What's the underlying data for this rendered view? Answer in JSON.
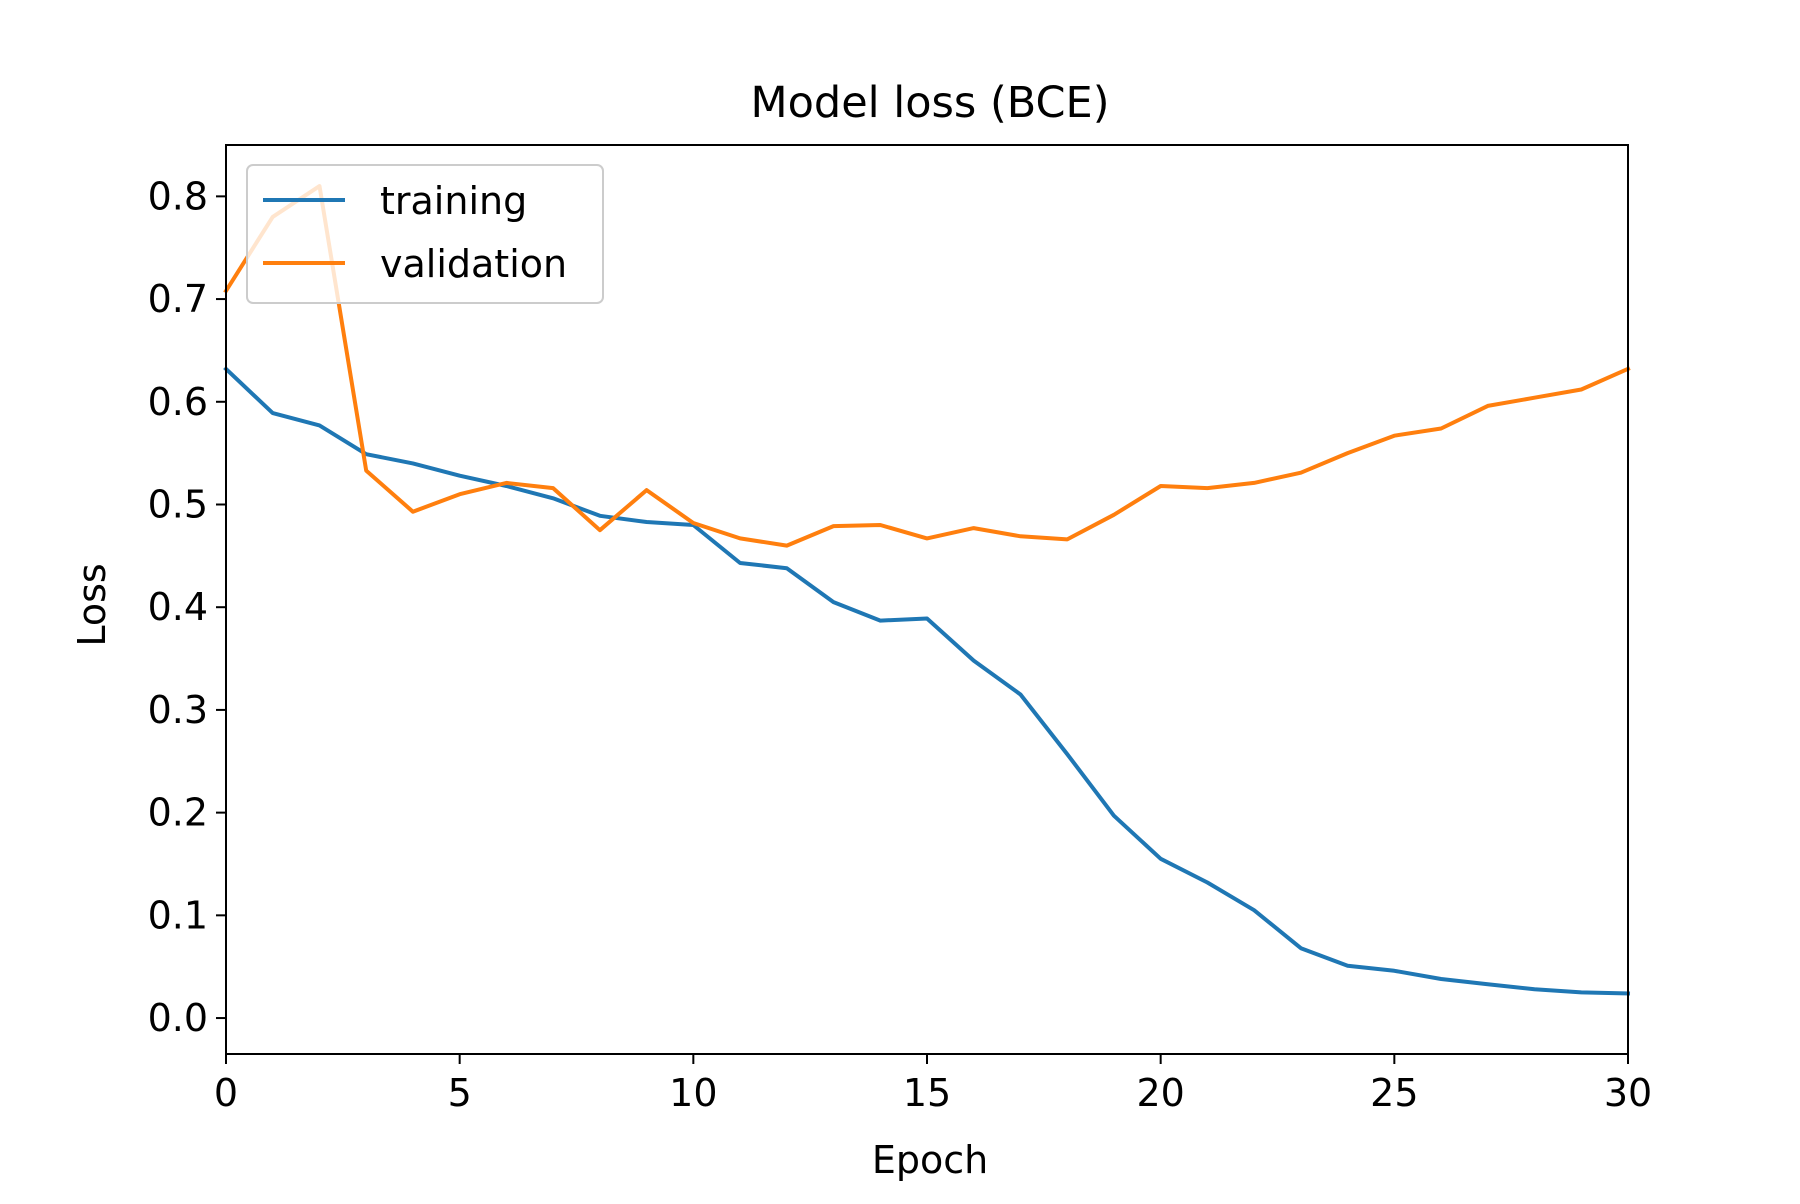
{
  "chart_data": {
    "type": "line",
    "title": "Model loss (BCE)",
    "xlabel": "Epoch",
    "ylabel": "Loss",
    "xlim": [
      0,
      30
    ],
    "ylim": [
      -0.035,
      0.85
    ],
    "xticks": [
      "0",
      "5",
      "10",
      "15",
      "20",
      "25",
      "30"
    ],
    "yticks": [
      "0.0",
      "0.1",
      "0.2",
      "0.3",
      "0.4",
      "0.5",
      "0.6",
      "0.7",
      "0.8"
    ],
    "grid": false,
    "legend_position": "top-left",
    "x": [
      0,
      1,
      2,
      3,
      4,
      5,
      6,
      7,
      8,
      9,
      10,
      11,
      12,
      13,
      14,
      15,
      16,
      17,
      18,
      19,
      20,
      21,
      22,
      23,
      24,
      25,
      26,
      27,
      28,
      29,
      30
    ],
    "series": [
      {
        "name": "training",
        "color": "#1f77b4",
        "values": [
          0.632,
          0.589,
          0.577,
          0.549,
          0.54,
          0.528,
          0.518,
          0.506,
          0.489,
          0.483,
          0.48,
          0.443,
          0.438,
          0.405,
          0.387,
          0.389,
          0.348,
          0.315,
          0.257,
          0.197,
          0.155,
          0.132,
          0.105,
          0.068,
          0.051,
          0.046,
          0.038,
          0.033,
          0.028,
          0.025,
          0.024
        ]
      },
      {
        "name": "validation",
        "color": "#ff7f0e",
        "values": [
          0.708,
          0.78,
          0.81,
          0.533,
          0.493,
          0.51,
          0.521,
          0.516,
          0.475,
          0.514,
          0.482,
          0.467,
          0.46,
          0.479,
          0.48,
          0.467,
          0.477,
          0.469,
          0.466,
          0.49,
          0.518,
          0.516,
          0.521,
          0.531,
          0.55,
          0.567,
          0.574,
          0.596,
          0.604,
          0.612,
          0.632
        ]
      }
    ]
  }
}
